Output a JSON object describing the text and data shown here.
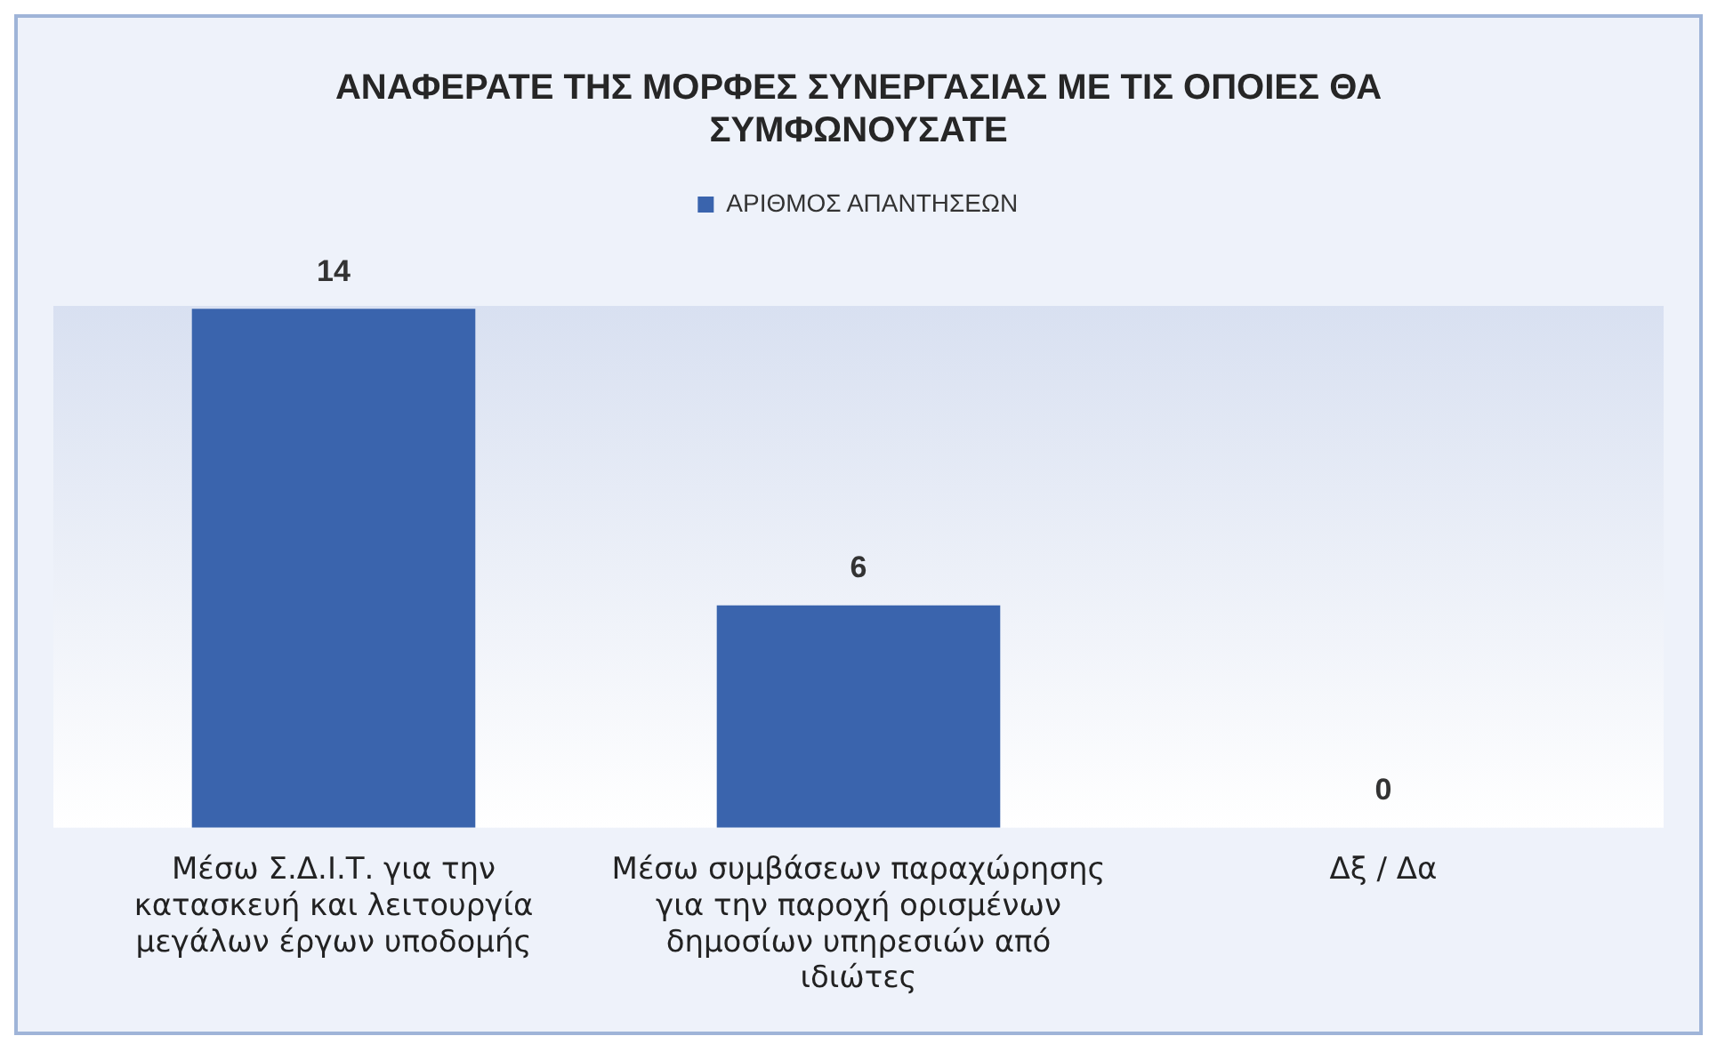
{
  "chart_data": {
    "type": "bar",
    "title": "ΑΝΑΦΕΡΑΤΕ ΤΗΣ ΜΟΡΦΕΣ ΣΥΝΕΡΓΑΣΙΑΣ ΜΕ ΤΙΣ ΟΠΟΙΕΣ ΘΑ ΣΥΜΦΩΝΟΥΣΑΤΕ",
    "categories": [
      "Μέσω Σ.Δ.Ι.Τ. για την κατασκευή και λειτουργία μεγάλων έργων υποδομής",
      "Μέσω συμβάσεων παραχώρησης για την παροχή ορισμένων δημοσίων υπηρεσιών από ιδιώτες",
      "Δξ / Δα"
    ],
    "series": [
      {
        "name": "ΑΡΙΘΜΟΣ ΑΠΑΝΤΗΣΕΩΝ",
        "color": "#3a64ad",
        "values": [
          14,
          6,
          0
        ]
      }
    ],
    "data_labels": true,
    "legend": "top",
    "grid": false
  }
}
